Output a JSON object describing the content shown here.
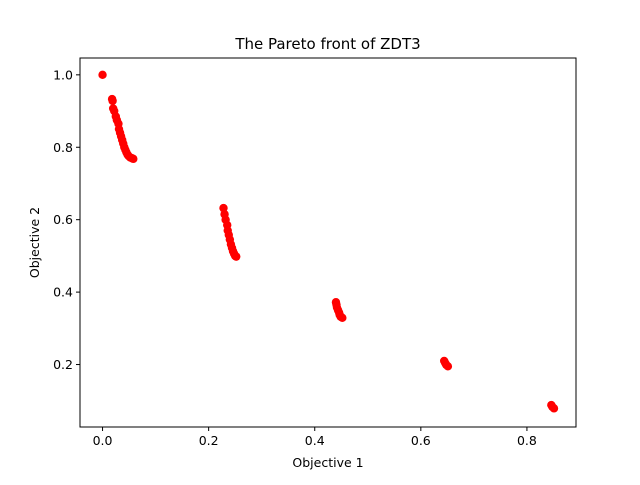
{
  "chart_data": {
    "type": "scatter",
    "title": "The Pareto front of ZDT3",
    "xlabel": "Objective 1",
    "ylabel": "Objective 2",
    "xlim": [
      -0.0425,
      0.8925
    ],
    "ylim": [
      0.0275,
      1.0465
    ],
    "xticks": [
      "0.0",
      "0.2",
      "0.4",
      "0.6",
      "0.8"
    ],
    "yticks": [
      "0.2",
      "0.4",
      "0.6",
      "0.8",
      "1.0"
    ],
    "xtick_values": [
      0.0,
      0.2,
      0.4,
      0.6,
      0.8
    ],
    "ytick_values": [
      0.2,
      0.4,
      0.6,
      0.8,
      1.0
    ],
    "grid": false,
    "marker_color": "#ff0000",
    "series": [
      {
        "points": [
          [
            0.0,
            1.0
          ],
          [
            0.018,
            0.933
          ],
          [
            0.019,
            0.928
          ],
          [
            0.02,
            0.907
          ],
          [
            0.022,
            0.9
          ],
          [
            0.025,
            0.885
          ],
          [
            0.027,
            0.875
          ],
          [
            0.03,
            0.865
          ],
          [
            0.031,
            0.85
          ],
          [
            0.033,
            0.84
          ],
          [
            0.035,
            0.83
          ],
          [
            0.037,
            0.82
          ],
          [
            0.039,
            0.81
          ],
          [
            0.041,
            0.8
          ],
          [
            0.043,
            0.793
          ],
          [
            0.045,
            0.786
          ],
          [
            0.047,
            0.78
          ],
          [
            0.049,
            0.776
          ],
          [
            0.052,
            0.772
          ],
          [
            0.055,
            0.77
          ],
          [
            0.058,
            0.768
          ],
          [
            0.228,
            0.632
          ],
          [
            0.23,
            0.615
          ],
          [
            0.232,
            0.6
          ],
          [
            0.235,
            0.585
          ],
          [
            0.236,
            0.57
          ],
          [
            0.238,
            0.558
          ],
          [
            0.24,
            0.545
          ],
          [
            0.242,
            0.532
          ],
          [
            0.244,
            0.522
          ],
          [
            0.246,
            0.513
          ],
          [
            0.248,
            0.506
          ],
          [
            0.25,
            0.5
          ],
          [
            0.252,
            0.498
          ],
          [
            0.44,
            0.372
          ],
          [
            0.441,
            0.365
          ],
          [
            0.442,
            0.357
          ],
          [
            0.444,
            0.35
          ],
          [
            0.446,
            0.343
          ],
          [
            0.447,
            0.337
          ],
          [
            0.449,
            0.332
          ],
          [
            0.452,
            0.329
          ],
          [
            0.644,
            0.21
          ],
          [
            0.646,
            0.204
          ],
          [
            0.648,
            0.199
          ],
          [
            0.651,
            0.195
          ],
          [
            0.846,
            0.088
          ],
          [
            0.848,
            0.083
          ],
          [
            0.851,
            0.079
          ]
        ]
      }
    ]
  }
}
